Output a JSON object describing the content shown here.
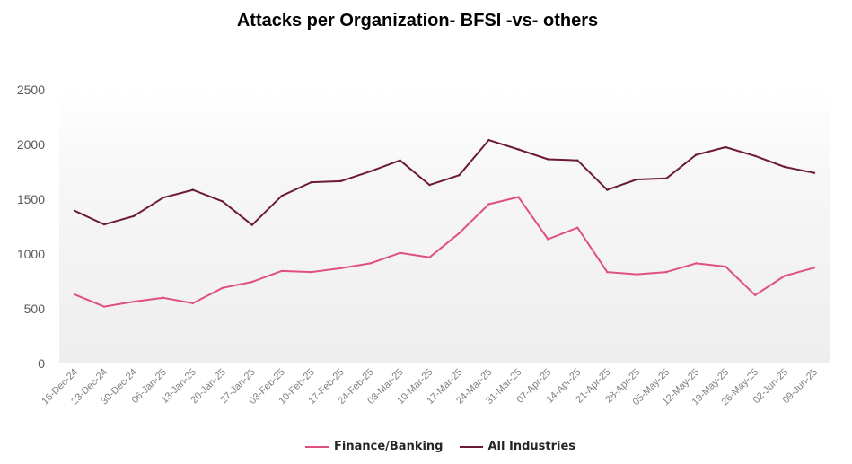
{
  "chart_data": {
    "type": "line",
    "title": "Attacks per Organization- BFSI -vs- others",
    "xlabel": "",
    "ylabel": "",
    "ylim": [
      0,
      2500
    ],
    "yticks": [
      "0",
      "500",
      "1000",
      "1500",
      "2000",
      "2500"
    ],
    "grid": false,
    "legend_position": "bottom",
    "categories": [
      "16-Dec-24",
      "23-Dec-24",
      "30-Dec-24",
      "06-Jan-25",
      "13-Jan-25",
      "20-Jan-25",
      "27-Jan-25",
      "03-Feb-25",
      "10-Feb-25",
      "17-Feb-25",
      "24-Feb-25",
      "03-Mar-25",
      "10-Mar-25",
      "17-Mar-25",
      "24-Mar-25",
      "31-Mar-25",
      "07-Apr-25",
      "14-Apr-25",
      "21-Apr-25",
      "28-Apr-25",
      "05-May-25",
      "12-May-25",
      "19-May-25",
      "26-May-25",
      "02-Jun-25",
      "09-Jun-25"
    ],
    "series": [
      {
        "name": "Finance/Banking",
        "color": "#e0507f",
        "values": [
          630,
          520,
          565,
          600,
          550,
          690,
          745,
          845,
          835,
          870,
          915,
          1010,
          970,
          1190,
          1455,
          1520,
          1135,
          1240,
          835,
          815,
          835,
          915,
          885,
          625,
          800,
          875
        ]
      },
      {
        "name": "All Industries",
        "color": "#6b1a3c",
        "values": [
          1395,
          1270,
          1345,
          1515,
          1585,
          1480,
          1265,
          1530,
          1655,
          1665,
          1755,
          1855,
          1630,
          1720,
          2040,
          1955,
          1865,
          1855,
          1585,
          1680,
          1690,
          1905,
          1975,
          1895,
          1795,
          1740
        ]
      }
    ]
  }
}
